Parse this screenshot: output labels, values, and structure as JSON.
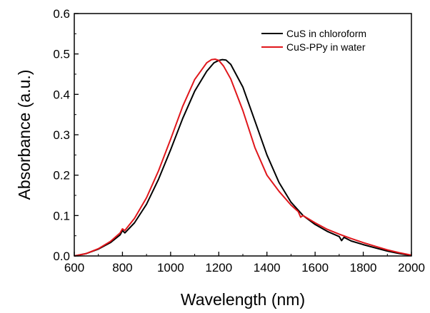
{
  "chart_data": {
    "type": "line",
    "title": "",
    "xlabel": "Wavelength (nm)",
    "ylabel": "Absorbance (a.u.)",
    "xlim": [
      600,
      2000
    ],
    "ylim": [
      0.0,
      0.6
    ],
    "x_ticks": [
      600,
      800,
      1000,
      1200,
      1400,
      1600,
      1800,
      2000
    ],
    "x_tick_labels": [
      "600",
      "800",
      "1000",
      "1200",
      "1400",
      "1600",
      "1800",
      "2000"
    ],
    "y_ticks": [
      0.0,
      0.1,
      0.2,
      0.3,
      0.4,
      0.5,
      0.6
    ],
    "y_tick_labels": [
      "0.0",
      "0.1",
      "0.2",
      "0.3",
      "0.4",
      "0.5",
      "0.6"
    ],
    "grid": false,
    "legend_position": "top-right",
    "series": [
      {
        "name": "CuS in chloroform",
        "color": "#000000",
        "x": [
          600,
          650,
          700,
          750,
          790,
          800,
          810,
          850,
          900,
          950,
          1000,
          1050,
          1100,
          1150,
          1180,
          1200,
          1215,
          1230,
          1250,
          1300,
          1350,
          1400,
          1450,
          1500,
          1550,
          1600,
          1650,
          1700,
          1710,
          1720,
          1750,
          1800,
          1850,
          1900,
          1950,
          2000
        ],
        "y": [
          0.0,
          0.006,
          0.017,
          0.033,
          0.052,
          0.063,
          0.057,
          0.082,
          0.128,
          0.19,
          0.263,
          0.34,
          0.408,
          0.457,
          0.478,
          0.484,
          0.486,
          0.485,
          0.474,
          0.418,
          0.334,
          0.25,
          0.182,
          0.133,
          0.1,
          0.078,
          0.061,
          0.048,
          0.038,
          0.046,
          0.037,
          0.028,
          0.02,
          0.012,
          0.006,
          0.001
        ]
      },
      {
        "name": "CuS-PPy in water",
        "color": "#e0161b",
        "x": [
          600,
          650,
          700,
          750,
          790,
          800,
          810,
          850,
          900,
          950,
          1000,
          1050,
          1100,
          1150,
          1170,
          1185,
          1200,
          1220,
          1250,
          1300,
          1350,
          1400,
          1450,
          1500,
          1530,
          1540,
          1550,
          1600,
          1650,
          1700,
          1750,
          1800,
          1850,
          1900,
          1950,
          2000
        ],
        "y": [
          0.0,
          0.006,
          0.018,
          0.036,
          0.057,
          0.067,
          0.063,
          0.093,
          0.144,
          0.211,
          0.289,
          0.37,
          0.437,
          0.478,
          0.486,
          0.487,
          0.484,
          0.47,
          0.438,
          0.36,
          0.268,
          0.2,
          0.16,
          0.126,
          0.11,
          0.096,
          0.1,
          0.082,
          0.066,
          0.054,
          0.043,
          0.033,
          0.024,
          0.015,
          0.008,
          0.002
        ]
      }
    ]
  }
}
